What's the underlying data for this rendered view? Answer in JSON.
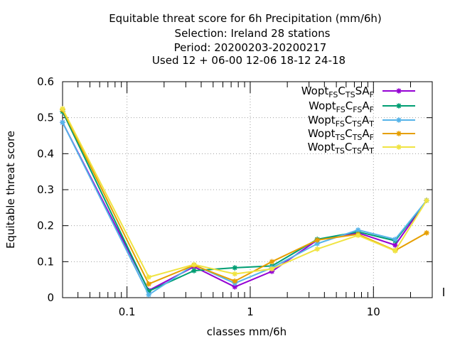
{
  "chart_data": {
    "type": "line",
    "title": [
      "Equitable threat score  for 6h Precipitation (mm/6h)",
      "Selection: Ireland     28 stations",
      "Period: 20200203-20200217",
      "Used  12 + 06-00 12-06 18-12 24-18"
    ],
    "xlabel": "classes mm/6h",
    "ylabel": "Equitable threat score",
    "xscale": "log",
    "xlim": [
      0.03,
      30
    ],
    "ylim": [
      0,
      0.6
    ],
    "x_ticks": [
      0.1,
      1,
      10
    ],
    "x_tick_labels": [
      "0.1",
      "1",
      "10"
    ],
    "y_ticks": [
      0,
      0.1,
      0.2,
      0.3,
      0.4,
      0.5,
      0.6
    ],
    "y_tick_labels": [
      "0",
      "0.1",
      "0.2",
      "0.3",
      "0.4",
      "0.5",
      "0.6"
    ],
    "grid": true,
    "legend_position": "top-right",
    "x": [
      0.03,
      0.15,
      0.35,
      0.75,
      1.5,
      3.5,
      7.5,
      15,
      27
    ],
    "series": [
      {
        "name": "Wopt FS CTS AF",
        "legend": [
          [
            "Wopt",
            ""
          ],
          [
            "FS",
            "sub"
          ],
          [
            "C",
            ""
          ],
          [
            "TS",
            "sub"
          ],
          [
            "S",
            ""
          ],
          [
            "A",
            ""
          ],
          [
            "F",
            "sub"
          ]
        ],
        "color": "#9400d3",
        "marker": "star",
        "values": [
          0.487,
          0.02,
          0.086,
          0.03,
          0.073,
          0.16,
          0.18,
          0.146,
          0.27
        ]
      },
      {
        "name": "Wopt FS CFS AF",
        "legend": [
          [
            "Wopt",
            ""
          ],
          [
            "FS",
            "sub"
          ],
          [
            "C",
            ""
          ],
          [
            "FS",
            "sub"
          ],
          [
            "A",
            ""
          ],
          [
            "F",
            "sub"
          ]
        ],
        "color": "#009e73",
        "marker": "star",
        "values": [
          0.517,
          0.018,
          0.075,
          0.083,
          0.088,
          0.162,
          0.183,
          0.158,
          0.27
        ]
      },
      {
        "name": "Wopt FS CTS AT",
        "legend": [
          [
            "Wopt",
            ""
          ],
          [
            "FS",
            "sub"
          ],
          [
            "C",
            ""
          ],
          [
            "TS",
            "sub"
          ],
          [
            "A",
            ""
          ],
          [
            "T",
            "sub"
          ]
        ],
        "color": "#56b4e9",
        "marker": "star",
        "values": [
          0.487,
          0.008,
          0.091,
          0.04,
          0.083,
          0.15,
          0.188,
          0.162,
          0.27
        ]
      },
      {
        "name": "Wopt TS CTS AF",
        "legend": [
          [
            "Wopt",
            ""
          ],
          [
            "TS",
            "sub"
          ],
          [
            "C",
            ""
          ],
          [
            "TS",
            "sub"
          ],
          [
            "A",
            ""
          ],
          [
            "F",
            "sub"
          ]
        ],
        "color": "#e69f00",
        "marker": "star",
        "values": [
          0.522,
          0.038,
          0.09,
          0.046,
          0.1,
          0.16,
          0.176,
          0.131,
          0.18
        ]
      },
      {
        "name": "Wopt TS CTS AT",
        "legend": [
          [
            "Wopt",
            ""
          ],
          [
            "TS",
            "sub"
          ],
          [
            "C",
            ""
          ],
          [
            "TS",
            "sub"
          ],
          [
            "A",
            ""
          ],
          [
            "T",
            "sub"
          ]
        ],
        "color": "#f0e442",
        "marker": "star",
        "values": [
          0.525,
          0.057,
          0.092,
          0.066,
          0.08,
          0.135,
          0.173,
          0.13,
          0.27
        ]
      }
    ]
  }
}
